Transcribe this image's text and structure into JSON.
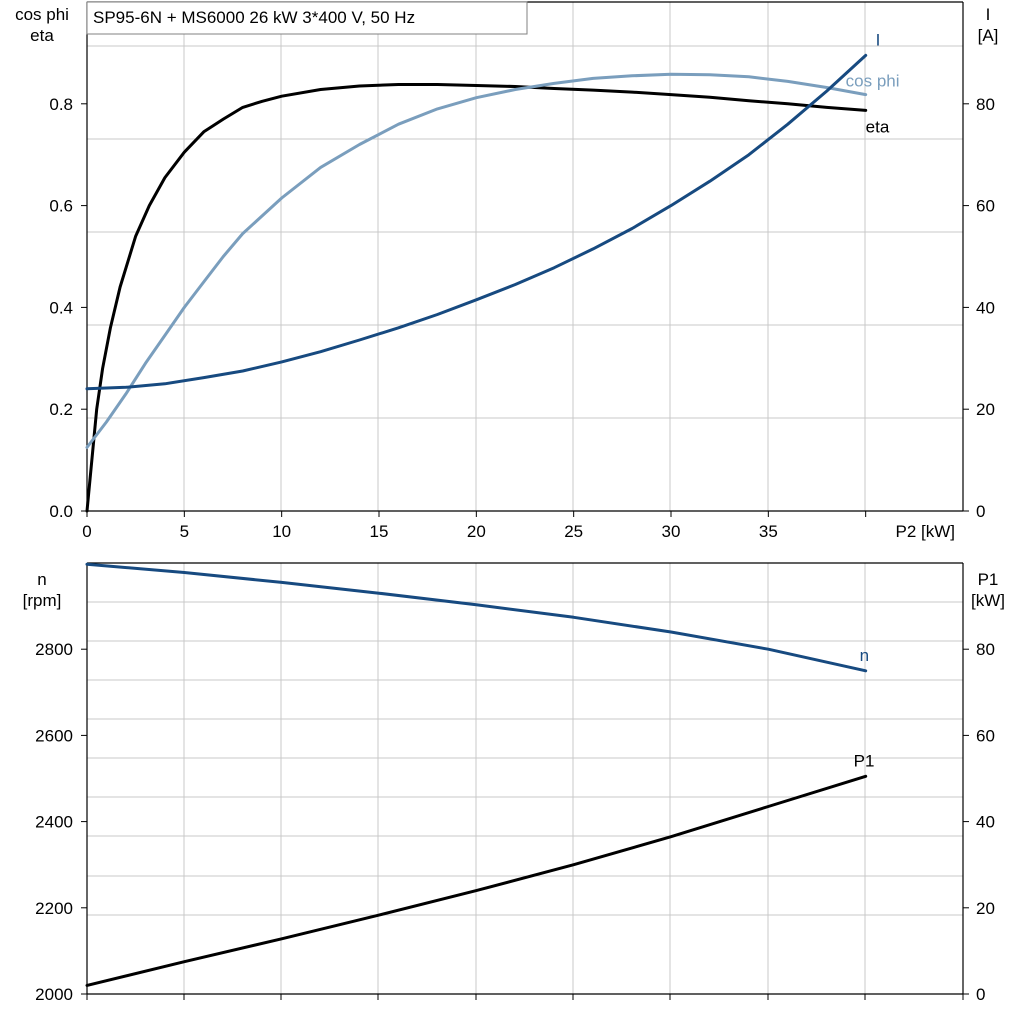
{
  "title": "SP95-6N + MS6000   26 kW   3*400 V, 50 Hz",
  "chart_data": [
    {
      "type": "line",
      "xlabel": "P2 [kW]",
      "xlim": [
        0,
        45
      ],
      "xticks": [
        0,
        5,
        10,
        15,
        20,
        25,
        30,
        35
      ],
      "ylabel_left": [
        "cos phi",
        "eta"
      ],
      "ylim_left": [
        0,
        1.0
      ],
      "yticks_left": [
        "0.0",
        "0.2",
        "0.4",
        "0.6",
        "0.8"
      ],
      "ylabel_right": [
        "I",
        "[A]"
      ],
      "ylim_right": [
        0,
        100
      ],
      "yticks_right": [
        "0",
        "20",
        "40",
        "60",
        "80"
      ],
      "grid": true,
      "series": [
        {
          "name": "eta",
          "axis": "left",
          "color": "#000000",
          "x": [
            0,
            0.5,
            0.8,
            1.2,
            1.7,
            2.5,
            3.2,
            4,
            5,
            6,
            7,
            8,
            9,
            10,
            12,
            14,
            16,
            18,
            20,
            22,
            24,
            26,
            28,
            30,
            32,
            34,
            36,
            38,
            40
          ],
          "y": [
            0.0,
            0.2,
            0.28,
            0.36,
            0.44,
            0.54,
            0.6,
            0.655,
            0.705,
            0.745,
            0.77,
            0.793,
            0.805,
            0.815,
            0.828,
            0.835,
            0.838,
            0.838,
            0.836,
            0.834,
            0.83,
            0.827,
            0.823,
            0.818,
            0.813,
            0.806,
            0.8,
            0.793,
            0.787
          ]
        },
        {
          "name": "cos phi",
          "axis": "left",
          "color": "#7a9ebd",
          "x": [
            0,
            1,
            2,
            3,
            4,
            5,
            6,
            7,
            8,
            10,
            12,
            14,
            16,
            18,
            20,
            22,
            24,
            26,
            28,
            30,
            32,
            34,
            36,
            38,
            40
          ],
          "y": [
            0.125,
            0.175,
            0.23,
            0.29,
            0.345,
            0.4,
            0.45,
            0.5,
            0.545,
            0.615,
            0.675,
            0.72,
            0.76,
            0.79,
            0.812,
            0.828,
            0.84,
            0.85,
            0.855,
            0.858,
            0.857,
            0.853,
            0.844,
            0.832,
            0.818
          ]
        },
        {
          "name": "I",
          "axis": "right",
          "color": "#174a80",
          "x": [
            0,
            2,
            4,
            6,
            8,
            10,
            12,
            14,
            16,
            18,
            20,
            22,
            24,
            26,
            28,
            30,
            32,
            34,
            36,
            38,
            40
          ],
          "y": [
            24,
            24.3,
            25,
            26.2,
            27.5,
            29.3,
            31.3,
            33.6,
            36,
            38.6,
            41.5,
            44.5,
            47.8,
            51.5,
            55.5,
            60,
            64.8,
            70,
            76,
            82.5,
            89.5
          ]
        }
      ]
    },
    {
      "type": "line",
      "xlim": [
        0,
        45
      ],
      "ylabel_left": [
        "n",
        "[rpm]"
      ],
      "ylim_left": [
        2000,
        3000
      ],
      "yticks_left": [
        "2000",
        "2200",
        "2400",
        "2600",
        "2800"
      ],
      "ylabel_right": [
        "P1",
        "[kW]"
      ],
      "ylim_right": [
        0,
        100
      ],
      "yticks_right": [
        "0",
        "20",
        "40",
        "60",
        "80"
      ],
      "grid": true,
      "series": [
        {
          "name": "n",
          "axis": "left",
          "color": "#174a80",
          "x": [
            0,
            5,
            10,
            15,
            20,
            25,
            30,
            35,
            40
          ],
          "y": [
            2997,
            2978,
            2955,
            2930,
            2903,
            2874,
            2840,
            2800,
            2750
          ]
        },
        {
          "name": "P1",
          "axis": "right",
          "color": "#000000",
          "x": [
            0,
            5,
            10,
            15,
            20,
            25,
            30,
            35,
            40
          ],
          "y": [
            2,
            7.5,
            12.8,
            18.3,
            24,
            30,
            36.5,
            43.5,
            50.5
          ]
        }
      ]
    }
  ]
}
